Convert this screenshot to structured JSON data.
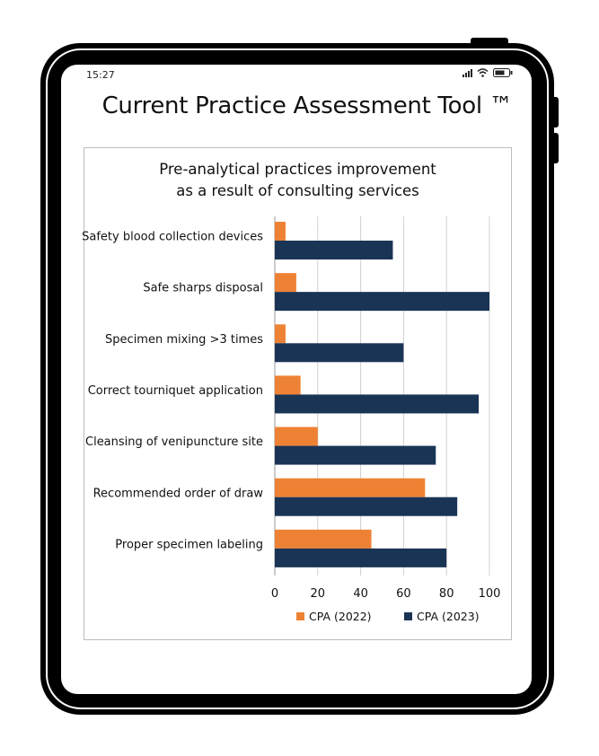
{
  "status_bar": {
    "time": "15:27",
    "icons": [
      "signal-icon",
      "wifi-icon",
      "battery-icon"
    ]
  },
  "app": {
    "title": "Current Practice Assessment Tool ™"
  },
  "colors": {
    "orange": "#ee8234",
    "navy": "#1a3455",
    "grid": "#d0d0d0",
    "device": "#000000"
  },
  "chart_data": {
    "type": "bar",
    "orientation": "horizontal",
    "title_lines": [
      "Pre-analytical practices improvement",
      "as a result of consulting services"
    ],
    "categories": [
      "Safety blood collection devices",
      "Safe sharps disposal",
      "Specimen mixing >3 times",
      "Correct tourniquet application",
      "Cleansing of venipuncture site",
      "Recommended order of draw",
      "Proper specimen labeling"
    ],
    "series": [
      {
        "name": "CPA (2022)",
        "color": "#ee8234",
        "values": [
          5,
          10,
          5,
          12,
          20,
          70,
          45
        ]
      },
      {
        "name": "CPA (2023)",
        "color": "#1a3455",
        "values": [
          55,
          100,
          60,
          95,
          75,
          85,
          80
        ]
      }
    ],
    "xlim": [
      0,
      100
    ],
    "xticks": [
      0,
      20,
      40,
      60,
      80,
      100
    ],
    "grid": true,
    "legend": "bottom"
  }
}
